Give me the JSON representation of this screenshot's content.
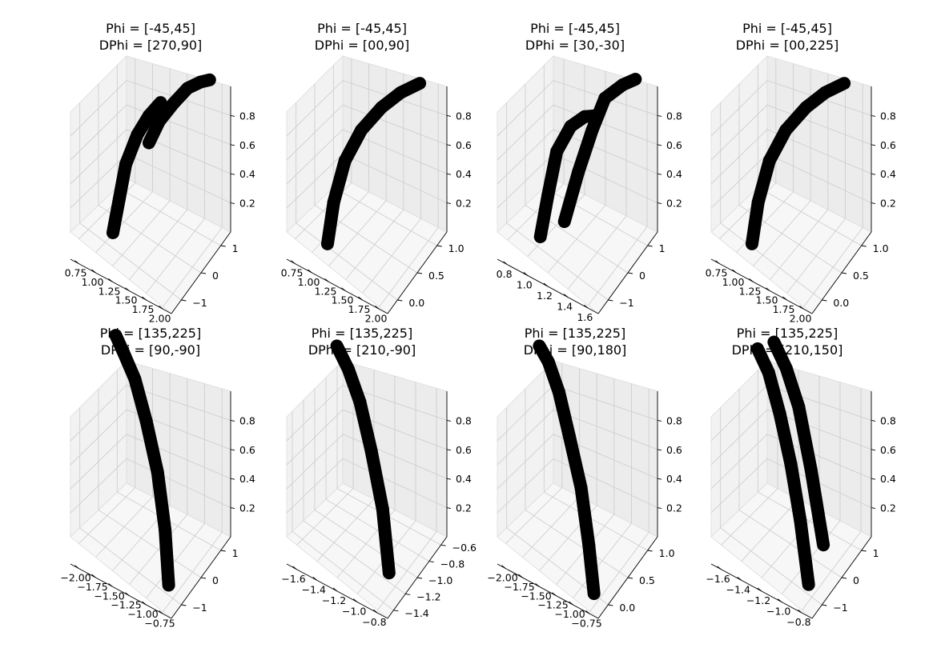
{
  "chart_data": [
    {
      "type": "scatter",
      "title": [
        "Phi = [-45,45]",
        "DPhi = [270,90]"
      ],
      "x_ticks": [
        "0.75",
        "1.00",
        "1.25",
        "1.50",
        "1.75",
        "2.00"
      ],
      "y_ticks": [
        "1",
        "0",
        "−1"
      ],
      "z_ticks": [
        "0.2",
        "0.4",
        "0.6",
        "0.8"
      ],
      "xlim": [
        0.7,
        2.0
      ],
      "ylim": [
        -1.2,
        1.2
      ],
      "zlim": [
        0.0,
        1.0
      ],
      "marker_color": "#000000",
      "series": [
        {
          "x": [
            1.0,
            1.05,
            1.1,
            1.2,
            1.3,
            1.4
          ],
          "y": [
            -0.8,
            -0.6,
            -0.4,
            -0.1,
            0.2,
            0.5
          ],
          "z": [
            0.05,
            0.25,
            0.45,
            0.62,
            0.72,
            0.78
          ]
        },
        {
          "x": [
            1.3,
            1.4,
            1.55,
            1.7,
            1.85,
            1.95
          ],
          "y": [
            0.2,
            0.4,
            0.6,
            0.8,
            0.9,
            1.0
          ],
          "z": [
            0.55,
            0.68,
            0.8,
            0.9,
            0.96,
            0.98
          ]
        }
      ]
    },
    {
      "type": "scatter",
      "title": [
        "Phi = [-45,45]",
        "DPhi = [00,90]"
      ],
      "x_ticks": [
        "0.75",
        "1.00",
        "1.25",
        "1.50",
        "1.75",
        "2.00"
      ],
      "y_ticks": [
        "1.0",
        "0.5",
        "0.0"
      ],
      "z_ticks": [
        "0.2",
        "0.4",
        "0.6",
        "0.8"
      ],
      "xlim": [
        0.7,
        2.0
      ],
      "ylim": [
        -0.1,
        1.2
      ],
      "zlim": [
        0.0,
        1.0
      ],
      "marker_color": "#000000",
      "series": [
        {
          "x": [
            1.0,
            1.05,
            1.15,
            1.3,
            1.5,
            1.7,
            1.9
          ],
          "y": [
            0.05,
            0.15,
            0.3,
            0.5,
            0.7,
            0.85,
            1.0
          ],
          "z": [
            0.0,
            0.25,
            0.5,
            0.68,
            0.82,
            0.92,
            0.98
          ]
        }
      ]
    },
    {
      "type": "scatter",
      "title": [
        "Phi = [-45,45]",
        "DPhi = [30,-30]"
      ],
      "x_ticks": [
        "0.8",
        "1.0",
        "1.2",
        "1.4",
        "1.6"
      ],
      "y_ticks": [
        "1",
        "0",
        "−1"
      ],
      "z_ticks": [
        "0.2",
        "0.4",
        "0.6",
        "0.8"
      ],
      "xlim": [
        0.7,
        1.7
      ],
      "ylim": [
        -1.2,
        1.2
      ],
      "zlim": [
        0.0,
        1.0
      ],
      "marker_color": "#000000",
      "series": [
        {
          "x": [
            0.95,
            1.0,
            1.05,
            1.15,
            1.25,
            1.35
          ],
          "y": [
            -0.9,
            -0.7,
            -0.4,
            -0.1,
            0.2,
            0.4
          ],
          "z": [
            0.05,
            0.3,
            0.55,
            0.7,
            0.75,
            0.76
          ]
        },
        {
          "x": [
            1.1,
            1.2,
            1.3,
            1.4,
            1.55,
            1.65
          ],
          "y": [
            -0.2,
            0.1,
            0.4,
            0.6,
            0.8,
            1.0
          ],
          "z": [
            0.1,
            0.4,
            0.65,
            0.85,
            0.95,
            0.98
          ]
        }
      ]
    },
    {
      "type": "scatter",
      "title": [
        "Phi = [-45,45]",
        "DPhi = [00,225]"
      ],
      "x_ticks": [
        "0.75",
        "1.00",
        "1.25",
        "1.50",
        "1.75",
        "2.00"
      ],
      "y_ticks": [
        "1.0",
        "0.5",
        "0.0"
      ],
      "z_ticks": [
        "0.2",
        "0.4",
        "0.6",
        "0.8"
      ],
      "xlim": [
        0.7,
        2.0
      ],
      "ylim": [
        -0.1,
        1.2
      ],
      "zlim": [
        0.0,
        1.0
      ],
      "marker_color": "#000000",
      "series": [
        {
          "x": [
            1.0,
            1.05,
            1.15,
            1.3,
            1.5,
            1.7,
            1.9
          ],
          "y": [
            0.05,
            0.15,
            0.3,
            0.5,
            0.7,
            0.85,
            1.0
          ],
          "z": [
            0.0,
            0.25,
            0.5,
            0.68,
            0.82,
            0.92,
            0.98
          ]
        }
      ]
    },
    {
      "type": "scatter",
      "title": [
        "Phi = [135,225]",
        "DPhi = [90,-90]"
      ],
      "x_ticks": [
        "−2.00",
        "−1.75",
        "−1.50",
        "−1.25",
        "−1.00",
        "−0.75"
      ],
      "y_ticks": [
        "1",
        "0",
        "−1"
      ],
      "z_ticks": [
        "0.2",
        "0.4",
        "0.6",
        "0.8"
      ],
      "xlim": [
        -2.0,
        -0.7
      ],
      "ylim": [
        -1.2,
        1.2
      ],
      "zlim": [
        0.0,
        1.0
      ],
      "marker_color": "#000000",
      "series": [
        {
          "x": [
            -1.95,
            -1.8,
            -1.6,
            -1.4,
            -1.2,
            -1.05,
            -0.95
          ],
          "y": [
            0.9,
            0.6,
            0.3,
            0.0,
            -0.3,
            -0.6,
            -0.9
          ],
          "z": [
            0.98,
            0.96,
            0.9,
            0.75,
            0.55,
            0.3,
            0.05
          ]
        }
      ]
    },
    {
      "type": "scatter",
      "title": [
        "Phi = [135,225]",
        "DPhi = [210,-90]"
      ],
      "x_ticks": [
        "−1.6",
        "−1.4",
        "−1.2",
        "−1.0",
        "−0.8"
      ],
      "y_ticks": [
        "−0.6",
        "−0.8",
        "−1.0",
        "−1.2",
        "−1.4"
      ],
      "z_ticks": [
        "0.2",
        "0.4",
        "0.6",
        "0.8"
      ],
      "xlim": [
        -1.7,
        -0.7
      ],
      "ylim": [
        -1.45,
        -0.55
      ],
      "zlim": [
        0.0,
        1.0
      ],
      "marker_color": "#000000",
      "series": [
        {
          "x": [
            -1.6,
            -1.45,
            -1.3,
            -1.15,
            -1.0,
            -0.9
          ],
          "y": [
            -0.7,
            -0.8,
            -0.9,
            -1.0,
            -1.1,
            -1.2
          ],
          "z": [
            0.95,
            0.9,
            0.8,
            0.6,
            0.35,
            0.05
          ]
        }
      ]
    },
    {
      "type": "scatter",
      "title": [
        "Phi = [135,225]",
        "DPhi = [90,180]"
      ],
      "x_ticks": [
        "−2.00",
        "−1.75",
        "−1.50",
        "−1.25",
        "−1.00",
        "−0.75"
      ],
      "y_ticks": [
        "1.0",
        "0.5",
        "0.0"
      ],
      "z_ticks": [
        "0.2",
        "0.4",
        "0.6",
        "0.8"
      ],
      "xlim": [
        -2.0,
        -0.7
      ],
      "ylim": [
        -0.1,
        1.2
      ],
      "zlim": [
        0.0,
        1.0
      ],
      "marker_color": "#000000",
      "series": [
        {
          "x": [
            -1.95,
            -1.8,
            -1.6,
            -1.4,
            -1.2,
            -1.05,
            -0.95
          ],
          "y": [
            0.9,
            0.8,
            0.6,
            0.4,
            0.25,
            0.1,
            0.0
          ],
          "z": [
            0.95,
            0.92,
            0.85,
            0.7,
            0.5,
            0.25,
            0.02
          ]
        }
      ]
    },
    {
      "type": "scatter",
      "title": [
        "Phi = [135,225]",
        "DPhi = [210,150]"
      ],
      "x_ticks": [
        "−1.6",
        "−1.4",
        "−1.2",
        "−1.0",
        "−0.8"
      ],
      "y_ticks": [
        "1",
        "0",
        "−1"
      ],
      "z_ticks": [
        "0.2",
        "0.4",
        "0.6",
        "0.8"
      ],
      "xlim": [
        -1.7,
        -0.7
      ],
      "ylim": [
        -1.2,
        1.2
      ],
      "zlim": [
        0.0,
        1.0
      ],
      "marker_color": "#000000",
      "series": [
        {
          "x": [
            -1.65,
            -1.5,
            -1.35,
            -1.2,
            -1.05,
            -0.9
          ],
          "y": [
            0.9,
            0.6,
            0.3,
            0.0,
            -0.4,
            -0.9
          ],
          "z": [
            0.9,
            0.85,
            0.7,
            0.5,
            0.28,
            0.05
          ]
        },
        {
          "x": [
            -1.5,
            -1.35,
            -1.2,
            -1.05,
            -0.9
          ],
          "y": [
            1.0,
            0.8,
            0.6,
            0.4,
            0.2
          ],
          "z": [
            0.98,
            0.9,
            0.75,
            0.45,
            0.08
          ]
        }
      ]
    }
  ]
}
